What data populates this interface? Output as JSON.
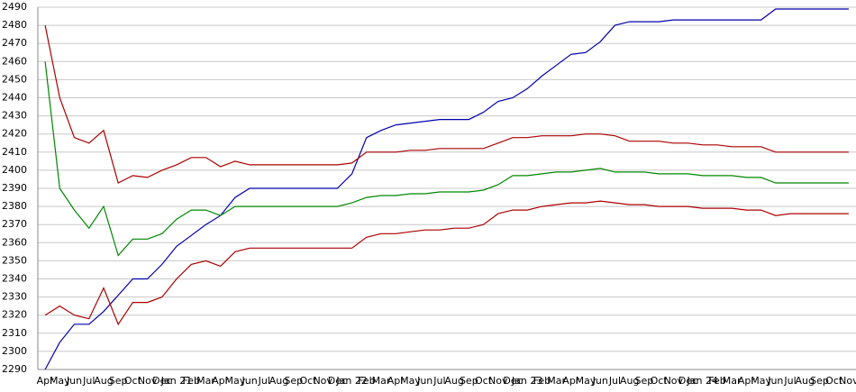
{
  "chart_data": {
    "type": "line",
    "categories": [
      "Apr",
      "May",
      "Jun",
      "Jul",
      "Aug",
      "Sep",
      "Oct",
      "Nov",
      "Dec",
      "Jan 21",
      "Feb",
      "Mar",
      "Apr",
      "May",
      "Jun",
      "Jul",
      "Aug",
      "Sep",
      "Oct",
      "Nov",
      "Dec",
      "Jan 22",
      "Feb",
      "Mar",
      "Apr",
      "May",
      "Jun",
      "Jul",
      "Aug",
      "Sep",
      "Oct",
      "Nov",
      "Dec",
      "Jan 23",
      "Feb",
      "Mar",
      "Apr",
      "May",
      "Jun",
      "Jul",
      "Aug",
      "Sep",
      "Oct",
      "Nov",
      "Dec",
      "Jan 24",
      "Feb",
      "Mar",
      "Apr",
      "May",
      "Jun",
      "Jul",
      "Aug",
      "Sep",
      "Oct",
      "Nov"
    ],
    "series": [
      {
        "color": "#0000aa",
        "values": [
          2290,
          2305,
          2315,
          2315,
          2322,
          2331,
          2340,
          2340,
          2348,
          2358,
          2364,
          2370,
          2375,
          2385,
          2390,
          2390,
          2390,
          2390,
          2390,
          2390,
          2390,
          2398,
          2418,
          2422,
          2425,
          2426,
          2427,
          2428,
          2428,
          2428,
          2432,
          2438,
          2440,
          2445,
          2452,
          2458,
          2464,
          2465,
          2471,
          2480,
          2482,
          2482,
          2482,
          2483,
          2483,
          2483,
          2483,
          2483,
          2483,
          2483,
          2489,
          2489,
          2489,
          2489,
          2489,
          2489
        ]
      },
      {
        "color": "#aa0000",
        "values": [
          2480,
          2440,
          2418,
          2415,
          2422,
          2393,
          2397,
          2396,
          2400,
          2403,
          2407,
          2407,
          2402,
          2405,
          2403,
          2403,
          2403,
          2403,
          2403,
          2403,
          2403,
          2404,
          2410,
          2410,
          2410,
          2411,
          2411,
          2412,
          2412,
          2412,
          2412,
          2415,
          2418,
          2418,
          2419,
          2419,
          2419,
          2420,
          2420,
          2419,
          2416,
          2416,
          2416,
          2415,
          2415,
          2414,
          2414,
          2413,
          2413,
          2413,
          2410,
          2410,
          2410,
          2410,
          2410,
          2410
        ]
      },
      {
        "color": "#008800",
        "values": [
          2460,
          2390,
          2378,
          2368,
          2380,
          2353,
          2362,
          2362,
          2365,
          2373,
          2378,
          2378,
          2375,
          2380,
          2380,
          2380,
          2380,
          2380,
          2380,
          2380,
          2380,
          2382,
          2385,
          2386,
          2386,
          2387,
          2387,
          2388,
          2388,
          2388,
          2389,
          2392,
          2397,
          2397,
          2398,
          2399,
          2399,
          2400,
          2401,
          2399,
          2399,
          2399,
          2398,
          2398,
          2398,
          2397,
          2397,
          2397,
          2396,
          2396,
          2393,
          2393,
          2393,
          2393,
          2393,
          2393
        ]
      },
      {
        "color": "#aa0000",
        "values": [
          2320,
          2325,
          2320,
          2318,
          2335,
          2315,
          2327,
          2327,
          2330,
          2340,
          2348,
          2350,
          2347,
          2355,
          2357,
          2357,
          2357,
          2357,
          2357,
          2357,
          2357,
          2357,
          2363,
          2365,
          2365,
          2366,
          2367,
          2367,
          2368,
          2368,
          2370,
          2376,
          2378,
          2378,
          2380,
          2381,
          2382,
          2382,
          2383,
          2382,
          2381,
          2381,
          2380,
          2380,
          2380,
          2379,
          2379,
          2379,
          2378,
          2378,
          2375,
          2376,
          2376,
          2376,
          2376,
          2376
        ]
      }
    ],
    "ylim": [
      2290,
      2490
    ],
    "yticks": [
      2290,
      2300,
      2310,
      2320,
      2330,
      2340,
      2350,
      2360,
      2370,
      2380,
      2390,
      2400,
      2410,
      2420,
      2430,
      2440,
      2450,
      2460,
      2470,
      2480,
      2490
    ],
    "grid": true
  }
}
